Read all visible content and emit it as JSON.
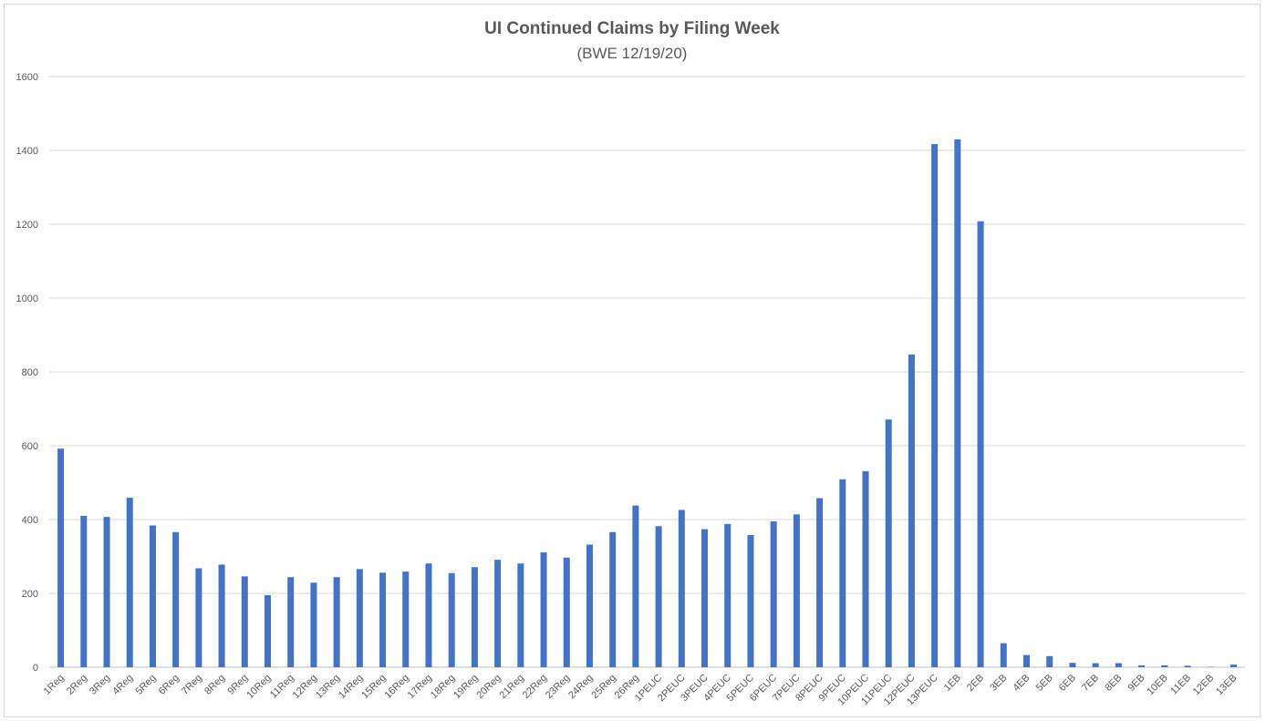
{
  "chart_data": {
    "type": "bar",
    "title": "UI Continued Claims by Filing Week",
    "subtitle": "(BWE 12/19/20)",
    "xlabel": "",
    "ylabel": "",
    "ylim": [
      0,
      1600
    ],
    "yticks": [
      0,
      200,
      400,
      600,
      800,
      1000,
      1200,
      1400,
      1600
    ],
    "grid": true,
    "legend": "none",
    "bar_color": "#4472c4",
    "categories": [
      "1Reg",
      "2Reg",
      "3Reg",
      "4Reg",
      "5Reg",
      "6Reg",
      "7Reg",
      "8Reg",
      "9Reg",
      "10Reg",
      "11Reg",
      "12Reg",
      "13Reg",
      "14Reg",
      "15Reg",
      "16Reg",
      "17Reg",
      "18Reg",
      "19Reg",
      "20Reg",
      "21Reg",
      "22Reg",
      "23Reg",
      "24Reg",
      "25Reg",
      "26Reg",
      "1PEUC",
      "2PEUC",
      "3PEUC",
      "4PEUC",
      "5PEUC",
      "6PEUC",
      "7PEUC",
      "8PEUC",
      "9PEUC",
      "10PEUC",
      "11PEUC",
      "12PEUC",
      "13PEUC",
      "1EB",
      "2EB",
      "3EB",
      "4EB",
      "5EB",
      "6EB",
      "7EB",
      "8EB",
      "9EB",
      "10EB",
      "11EB",
      "12EB",
      "13EB"
    ],
    "values": [
      592,
      410,
      407,
      459,
      384,
      366,
      268,
      278,
      246,
      195,
      244,
      229,
      244,
      266,
      256,
      259,
      281,
      255,
      271,
      291,
      281,
      311,
      297,
      332,
      366,
      438,
      382,
      426,
      374,
      388,
      358,
      395,
      414,
      458,
      509,
      531,
      671,
      847,
      1417,
      1430,
      1208,
      65,
      33,
      30,
      12,
      11,
      11,
      5,
      5,
      4,
      1,
      7
    ]
  }
}
